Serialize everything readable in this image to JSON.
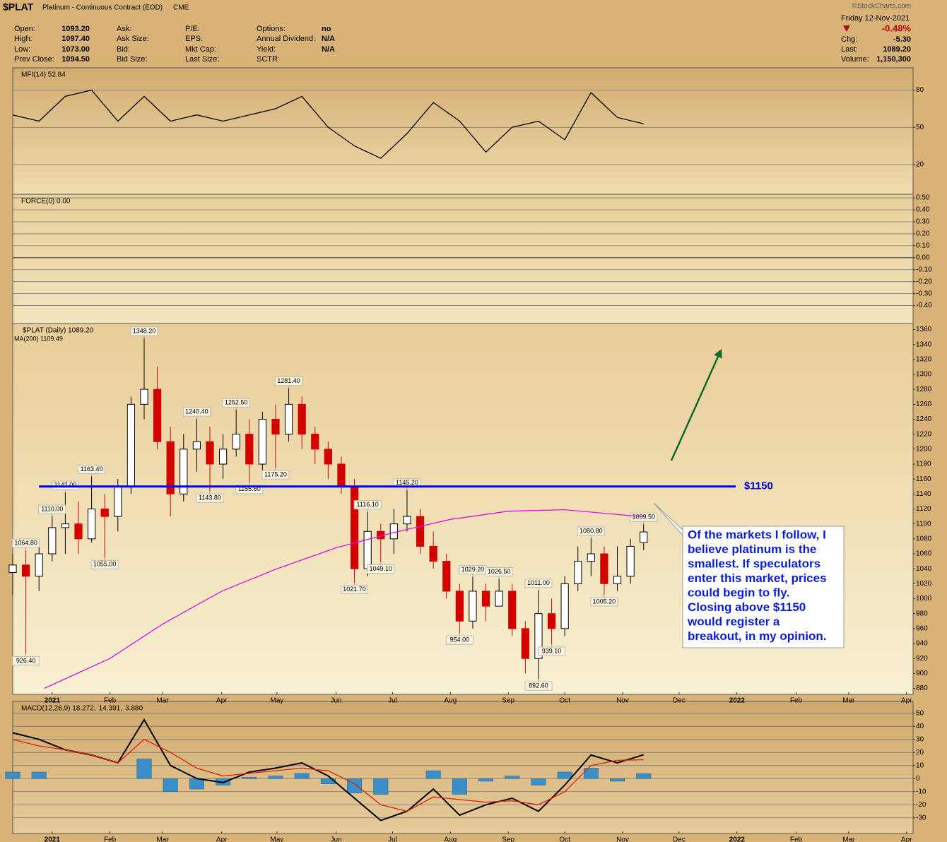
{
  "header": {
    "symbol": "$PLAT",
    "name": "Platinum - Continuous Contract (EOD)",
    "exchange": "CME",
    "date": "Friday  12-Nov-2021",
    "change_pct": "-0.48%",
    "copyright": "©StockCharts.com",
    "quote_columns": [
      [
        [
          "Open:",
          "1093.20"
        ],
        [
          "High:",
          "1097.40"
        ],
        [
          "Low:",
          "1073.00"
        ],
        [
          "Prev Close:",
          "1094.50"
        ]
      ],
      [
        [
          "Ask:"
        ],
        [
          "Ask Size:"
        ],
        [
          "Bid:"
        ],
        [
          "Bid Size:"
        ]
      ],
      [
        [
          "P/E:"
        ],
        [
          "EPS:"
        ],
        [
          "Mkt Cap:"
        ],
        [
          "Last Size:"
        ]
      ],
      [
        [
          "Options:",
          "no"
        ],
        [
          "Annual Dividend:",
          "N/A"
        ],
        [
          "Yield:",
          "N/A"
        ],
        [
          "SCTR:"
        ]
      ]
    ],
    "right_rows": [
      [
        "Chg:",
        "-5.30"
      ],
      [
        "Last:",
        "1089.20"
      ],
      [
        "Volume:",
        "1,150,300"
      ]
    ]
  },
  "callout": [
    "Of the markets I follow, I",
    "believe platinum is the",
    "smallest. If speculators",
    "enter this market, prices",
    "could begin to fly.",
    "Closing above $1150",
    "would register a",
    "breakout, in my opinion."
  ],
  "chart_data": [
    {
      "type": "line",
      "title": "MFI(14) 52.84",
      "xlim": [
        0,
        68.5
      ],
      "ylim": [
        -4,
        98
      ],
      "yticks": [
        20,
        50,
        80
      ],
      "grid": true,
      "series": [
        {
          "color": "#000000",
          "x": [
            0,
            2,
            4,
            6,
            8,
            10,
            12,
            14,
            16,
            18,
            20,
            22,
            24,
            26,
            28,
            30,
            32,
            34,
            36,
            38,
            40,
            42,
            44,
            46,
            48
          ],
          "values": [
            60,
            55,
            75,
            80,
            55,
            75,
            55,
            60,
            55,
            60,
            65,
            75,
            50,
            35,
            25,
            45,
            70,
            55,
            30,
            50,
            55,
            40,
            78,
            58,
            52.84
          ]
        }
      ]
    },
    {
      "type": "line",
      "title": "FORCE(0) 0.00",
      "value": 0,
      "ylim": [
        -0.55,
        0.53
      ],
      "grid": true,
      "yticks": [
        {
          "value": 0.5,
          "label": "0.50"
        },
        {
          "value": 0.4,
          "label": "0.40"
        },
        {
          "value": 0.3,
          "label": "0.30"
        },
        {
          "value": 0.2,
          "label": "0.20"
        },
        {
          "value": 0.1,
          "label": "0.10"
        },
        {
          "value": 0,
          "label": "0.00"
        },
        {
          "value": -0.1,
          "label": "-0.10"
        },
        {
          "value": -0.2,
          "label": "-0.20"
        },
        {
          "value": -0.3,
          "label": "-0.30"
        },
        {
          "value": -0.4,
          "label": "-0.40"
        }
      ]
    },
    {
      "type": "candlestick",
      "xlim": [
        0,
        68.5
      ],
      "ylim": [
        872,
        1368
      ],
      "grid": false,
      "yticks": [
        880,
        900,
        920,
        940,
        960,
        980,
        1000,
        1020,
        1040,
        1060,
        1080,
        1100,
        1120,
        1140,
        1160,
        1180,
        1200,
        1220,
        1240,
        1260,
        1280,
        1300,
        1320,
        1340,
        1360
      ],
      "xticks": [
        {
          "value": 3,
          "label": "2021"
        },
        {
          "value": 7.4,
          "label": "Feb"
        },
        {
          "value": 11.4,
          "label": "Mar"
        },
        {
          "value": 15.9,
          "label": "Apr"
        },
        {
          "value": 20.1,
          "label": "May"
        },
        {
          "value": 24.6,
          "label": "Jun"
        },
        {
          "value": 28.9,
          "label": "Jul"
        },
        {
          "value": 33.3,
          "label": "Aug"
        },
        {
          "value": 37.7,
          "label": "Sep"
        },
        {
          "value": 42,
          "label": "Oct"
        },
        {
          "value": 46.4,
          "label": "Nov"
        },
        {
          "value": 50.7,
          "label": "Dec"
        },
        {
          "value": 55.1,
          "label": "2022"
        },
        {
          "value": 59.6,
          "label": "Feb"
        },
        {
          "value": 63.6,
          "label": "Mar"
        },
        {
          "value": 68,
          "label": "Apr"
        }
      ],
      "x": [
        0,
        1,
        2,
        3,
        4,
        5,
        6,
        7,
        8,
        9,
        10,
        11,
        12,
        13,
        14,
        15,
        16,
        17,
        18,
        19,
        20,
        21,
        22,
        23,
        24,
        25,
        26,
        27,
        28,
        29,
        30,
        31,
        32,
        33,
        34,
        35,
        36,
        37,
        38,
        39,
        40,
        41,
        42,
        43,
        44,
        45,
        46,
        47,
        48
      ],
      "ohlc": {
        "name": "$PLAT (Daily) 1089.20",
        "up_color": "#ffffff",
        "down_color": "#d40000",
        "open": [
          1035,
          1045,
          1030,
          1060,
          1095,
          1100,
          1080,
          1120,
          1110,
          1150,
          1260,
          1280,
          1210,
          1140,
          1200,
          1210,
          1180,
          1200,
          1220,
          1180,
          1240,
          1220,
          1260,
          1220,
          1200,
          1180,
          1150,
          1040,
          1090,
          1080,
          1100,
          1110,
          1070,
          1050,
          1010,
          970,
          1010,
          990,
          1010,
          960,
          920,
          980,
          960,
          1020,
          1050,
          1060,
          1020,
          1030,
          1075
        ],
        "high": [
          1060,
          1064.8,
          1070,
          1110,
          1142,
          1130,
          1163.4,
          1140,
          1160,
          1270,
          1348.2,
          1310,
          1230,
          1220,
          1240.4,
          1230,
          1220,
          1252.5,
          1240,
          1250,
          1260,
          1281.4,
          1270,
          1230,
          1210,
          1190,
          1160,
          1116.1,
          1100,
          1120,
          1145.2,
          1120,
          1090,
          1060,
          1020,
          1029.2,
          1020,
          1026.5,
          1020,
          970,
          1011,
          1000,
          1030,
          1070,
          1080.8,
          1070,
          1070,
          1080,
          1099.5
        ],
        "low": [
          1005,
          926.4,
          1010,
          1050,
          1060,
          1060,
          1075,
          1055,
          1090,
          1140,
          1240,
          1200,
          1110,
          1130,
          1170,
          1143.8,
          1160,
          1190,
          1155.6,
          1170,
          1175.2,
          1210,
          1200,
          1180,
          1160,
          1140,
          1021.7,
          1030,
          1049.1,
          1060,
          1090,
          1060,
          1040,
          1000,
          954,
          960,
          970,
          990,
          950,
          900,
          892.6,
          939.1,
          950,
          1010,
          1030,
          1005.2,
          1010,
          1020,
          1065
        ],
        "close": [
          1045,
          1030,
          1060,
          1095,
          1100,
          1080,
          1120,
          1110,
          1150,
          1260,
          1280,
          1210,
          1140,
          1200,
          1210,
          1180,
          1200,
          1220,
          1180,
          1240,
          1220,
          1260,
          1220,
          1200,
          1180,
          1150,
          1040,
          1090,
          1080,
          1100,
          1110,
          1070,
          1050,
          1010,
          970,
          1010,
          990,
          1010,
          960,
          920,
          980,
          960,
          1020,
          1050,
          1060,
          1020,
          1030,
          1070,
          1089.2
        ]
      },
      "series": [
        {
          "name": "MA(200) 1109.49",
          "color": "#e010e0",
          "x": [
            2.4,
            7.4,
            11.4,
            15.9,
            20.1,
            24.6,
            28.9,
            33.3,
            37.7,
            42,
            46.4,
            48
          ],
          "values": [
            880,
            920,
            966,
            1010,
            1040,
            1068,
            1088,
            1106,
            1117,
            1119,
            1112,
            1109.49
          ]
        }
      ],
      "annotations": [
        {
          "value": 1348.2,
          "label": "1348.20"
        },
        {
          "value": 1281.4,
          "label": "1281.40"
        },
        {
          "value": 1252.5,
          "label": "1252.50"
        },
        {
          "value": 1240.4,
          "label": "1240.40"
        },
        {
          "value": 1163.4,
          "label": "1163.40"
        },
        {
          "value": 1145.2,
          "label": "1145.20"
        },
        {
          "value": 1142,
          "label": "1142.00"
        },
        {
          "value": 1175.2,
          "label": "1175.20"
        },
        {
          "value": 1155.6,
          "label": "1155.60"
        },
        {
          "value": 1143.8,
          "label": "1143.80"
        },
        {
          "value": 1116.1,
          "label": "1116.10"
        },
        {
          "value": 1110,
          "label": "1110.00"
        },
        {
          "value": 1099.5,
          "label": "1099.50"
        },
        {
          "value": 1080.8,
          "label": "1080.80"
        },
        {
          "value": 1064.8,
          "label": "1064.80"
        },
        {
          "value": 1055,
          "label": "1055.00"
        },
        {
          "value": 1049.1,
          "label": "1049.10"
        },
        {
          "value": 1029.2,
          "label": "1029.20"
        },
        {
          "value": 1026.5,
          "label": "1026.50"
        },
        {
          "value": 1021.7,
          "label": "1021.70"
        },
        {
          "value": 1011,
          "label": "1011.00"
        },
        {
          "value": 1005.2,
          "label": "1005.20"
        },
        {
          "value": 954,
          "label": "954.00"
        },
        {
          "value": 939.1,
          "label": "939.10"
        },
        {
          "value": 926.4,
          "label": "926.40"
        },
        {
          "value": 892.6,
          "label": "892.60"
        }
      ],
      "level": {
        "value": 1150,
        "label": "$1150",
        "color": "#0000e0",
        "xrange": [
          2,
          55
        ]
      }
    },
    {
      "type": "line",
      "xlim": [
        0,
        68.5
      ],
      "ylim": [
        -42,
        59
      ],
      "yticks": [
        -30,
        -20,
        -10,
        0,
        10,
        20,
        30,
        40,
        50
      ],
      "grid": true,
      "xticks": [
        {
          "value": 3,
          "label": "2021"
        },
        {
          "value": 7.4,
          "label": "Feb"
        },
        {
          "value": 11.4,
          "label": "Mar"
        },
        {
          "value": 15.9,
          "label": "Apr"
        },
        {
          "value": 20.1,
          "label": "May"
        },
        {
          "value": 24.6,
          "label": "Jun"
        },
        {
          "value": 28.9,
          "label": "Jul"
        },
        {
          "value": 33.3,
          "label": "Aug"
        },
        {
          "value": 37.7,
          "label": "Sep"
        },
        {
          "value": 42,
          "label": "Oct"
        },
        {
          "value": 46.4,
          "label": "Nov"
        },
        {
          "value": 50.7,
          "label": "Dec"
        },
        {
          "value": 55.1,
          "label": "2022"
        },
        {
          "value": 59.6,
          "label": "Feb"
        },
        {
          "value": 63.6,
          "label": "Mar"
        },
        {
          "value": 68,
          "label": "Apr"
        }
      ],
      "x": [
        0,
        2,
        4,
        6,
        8,
        10,
        12,
        14,
        16,
        18,
        20,
        22,
        24,
        26,
        28,
        30,
        32,
        34,
        36,
        38,
        40,
        42,
        44,
        46,
        48
      ],
      "series": [
        {
          "name": "MACD(12,26,9) 18.272,",
          "color": "#000000",
          "values": [
            35,
            30,
            22,
            18,
            12,
            45,
            10,
            0,
            -3,
            5,
            8,
            12,
            2,
            -15,
            -32,
            -25,
            -8,
            -28,
            -20,
            -15,
            -25,
            -5,
            18,
            12,
            18.272
          ]
        },
        {
          "name": "14.391,",
          "color": "#e02000",
          "values": [
            30,
            25,
            22,
            18,
            12,
            30,
            20,
            8,
            2,
            4,
            6,
            8,
            6,
            -4,
            -20,
            -25,
            -14,
            -16,
            -18,
            -17,
            -20,
            -10,
            10,
            14,
            14.391
          ]
        },
        {
          "name": "3.880",
          "color": "#3a8fc7",
          "style": "bar",
          "values": [
            5,
            5,
            0,
            0,
            0,
            15,
            -10,
            -8,
            -5,
            1,
            2,
            4,
            -4,
            -11,
            -12,
            0,
            6,
            -12,
            -2,
            2,
            -5,
            5,
            8,
            -2,
            3.88
          ]
        }
      ]
    }
  ]
}
